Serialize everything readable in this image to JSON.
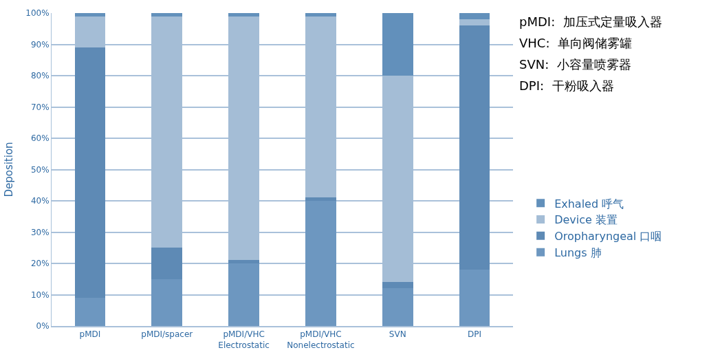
{
  "chart_data": {
    "type": "bar",
    "stacked": true,
    "ylabel": "Deposition",
    "categories": [
      "pMDI",
      "pMDI/spacer",
      "pMDI/VHC\nElectrostatic",
      "pMDI/VHC\nNonelectrostatic",
      "SVN",
      "DPI"
    ],
    "series": [
      {
        "name": "Lungs 肺",
        "color": "#6d97c0",
        "values": [
          9,
          15,
          20,
          40,
          12,
          18
        ]
      },
      {
        "name": "Oropharyngeal 口咽",
        "color": "#5e8ab5",
        "values": [
          80,
          10,
          1,
          1,
          2,
          78
        ]
      },
      {
        "name": "Device 装置",
        "color": "#a4bdd6",
        "values": [
          10,
          74,
          78,
          58,
          66,
          2
        ]
      },
      {
        "name": "Exhaled 呼气",
        "color": "#6290bb",
        "values": [
          1,
          1,
          1,
          1,
          20,
          2
        ]
      }
    ],
    "ylim": [
      0,
      100
    ],
    "yticks": [
      {
        "value": 0,
        "label": "0%"
      },
      {
        "value": 10,
        "label": "10%"
      },
      {
        "value": 20,
        "label": "20%"
      },
      {
        "value": 30,
        "label": "30%"
      },
      {
        "value": 40,
        "label": "40%"
      },
      {
        "value": 50,
        "label": "50%"
      },
      {
        "value": 60,
        "label": "60%"
      },
      {
        "value": 70,
        "label": "70%"
      },
      {
        "value": 80,
        "label": "80%"
      },
      {
        "value": 90,
        "label": "90%"
      },
      {
        "value": 100,
        "label": "100%"
      }
    ],
    "grid": "y",
    "legend": "right",
    "annotations": [
      "pMDI:  加压式定量吸入器",
      "VHC:  单向阀储雾罐",
      "SVN:  小容量喷雾器",
      "DPI:  干粉吸入器"
    ]
  }
}
